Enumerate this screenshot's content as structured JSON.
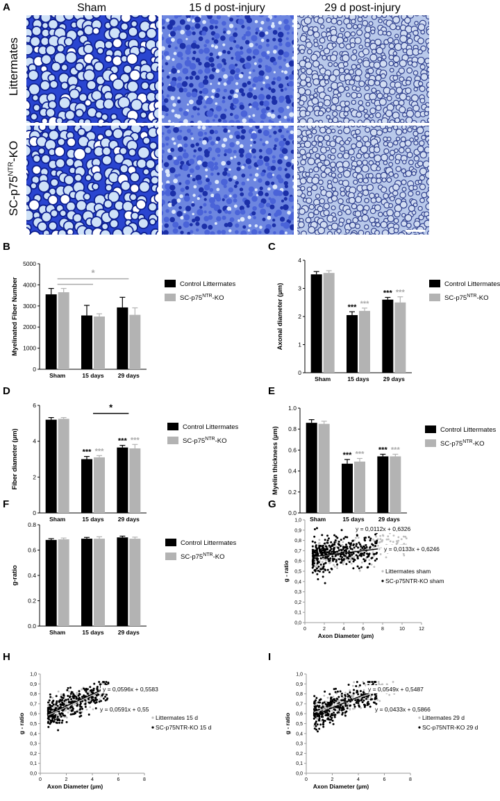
{
  "figure": {
    "panel_letters": [
      "A",
      "B",
      "C",
      "D",
      "E",
      "F",
      "G",
      "H",
      "I"
    ],
    "column_titles": [
      "Sham",
      "15 d post-injury",
      "29 d post-injury"
    ],
    "row_titles": [
      "Littermates",
      "SC-p75NTR-KO"
    ]
  },
  "colors": {
    "control": "#000000",
    "ko": "#b3b3b3",
    "sig_ko": "#aaaaaa",
    "stain_dark": "#1a2fb8",
    "stain_light": "#d8e6f5"
  },
  "chart_data": [
    {
      "panel": "B",
      "type": "bar",
      "ylabel": "Myelinated Fiber Number",
      "categories": [
        "Sham",
        "15 days",
        "29 days"
      ],
      "ylim": [
        0,
        5000
      ],
      "yticks": [
        "0",
        "1000",
        "2000",
        "3000",
        "4000",
        "5000"
      ],
      "series": [
        {
          "name": "Control Littermates",
          "values": [
            3550,
            2550,
            2930
          ],
          "errors": [
            280,
            480,
            480
          ]
        },
        {
          "name": "SC-p75NTR-KO",
          "values": [
            3650,
            2500,
            2580
          ],
          "errors": [
            180,
            130,
            330
          ]
        }
      ],
      "annotations": [
        {
          "text": "*",
          "spans": [
            [
              "Sham",
              "15 days"
            ],
            [
              "Sham",
              "29 days"
            ]
          ],
          "color": "ko"
        }
      ]
    },
    {
      "panel": "C",
      "type": "bar",
      "ylabel": "Axonal diameter (µm)",
      "categories": [
        "Sham",
        "15 days",
        "29 days"
      ],
      "ylim": [
        0,
        4
      ],
      "yticks": [
        "0",
        "1",
        "2",
        "3",
        "4"
      ],
      "series": [
        {
          "name": "Control Littermates",
          "values": [
            3.5,
            2.05,
            2.6
          ],
          "errors": [
            0.1,
            0.12,
            0.08
          ]
        },
        {
          "name": "SC-p75NTR-KO",
          "values": [
            3.55,
            2.2,
            2.5
          ],
          "errors": [
            0.08,
            0.1,
            0.2
          ]
        }
      ],
      "annotations": [
        {
          "text": "***",
          "category": "15 days",
          "series": 0
        },
        {
          "text": "***",
          "category": "15 days",
          "series": 1
        },
        {
          "text": "***",
          "category": "29 days",
          "series": 0
        },
        {
          "text": "***",
          "category": "29 days",
          "series": 1
        }
      ]
    },
    {
      "panel": "D",
      "type": "bar",
      "ylabel": "Fiber diameter (µm)",
      "categories": [
        "Sham",
        "15 days",
        "29 days"
      ],
      "ylim": [
        0,
        6
      ],
      "yticks": [
        "0",
        "2",
        "4",
        "6"
      ],
      "series": [
        {
          "name": "Control Littermates",
          "values": [
            5.2,
            3.0,
            3.65
          ],
          "errors": [
            0.12,
            0.15,
            0.12
          ]
        },
        {
          "name": "SC-p75NTR-KO",
          "values": [
            5.25,
            3.1,
            3.6
          ],
          "errors": [
            0.07,
            0.1,
            0.22
          ]
        }
      ],
      "annotations": [
        {
          "text": "*",
          "spans": [
            [
              "15 days",
              "29 days"
            ]
          ],
          "color": "control"
        },
        {
          "text": "***",
          "category": "15 days",
          "series": 0
        },
        {
          "text": "***",
          "category": "15 days",
          "series": 1
        },
        {
          "text": "***",
          "category": "29 days",
          "series": 0
        },
        {
          "text": "***",
          "category": "29 days",
          "series": 1
        }
      ]
    },
    {
      "panel": "E",
      "type": "bar",
      "ylabel": "Myelin thickness (µm)",
      "categories": [
        "Sham",
        "15 days",
        "29 days"
      ],
      "ylim": [
        0,
        1
      ],
      "yticks": [
        "0.0",
        "0.2",
        "0.4",
        "0.6",
        "0.8",
        "1.0"
      ],
      "series": [
        {
          "name": "Control Littermates",
          "values": [
            0.86,
            0.47,
            0.54
          ],
          "errors": [
            0.03,
            0.04,
            0.02
          ]
        },
        {
          "name": "SC-p75NTR-KO",
          "values": [
            0.85,
            0.49,
            0.54
          ],
          "errors": [
            0.025,
            0.03,
            0.02
          ]
        }
      ],
      "annotations": [
        {
          "text": "***",
          "category": "15 days",
          "series": 0
        },
        {
          "text": "***",
          "category": "15 days",
          "series": 1
        },
        {
          "text": "***",
          "category": "29 days",
          "series": 0
        },
        {
          "text": "***",
          "category": "29 days",
          "series": 1
        }
      ]
    },
    {
      "panel": "F",
      "type": "bar",
      "ylabel": "g-ratio",
      "categories": [
        "Sham",
        "15 days",
        "29 days"
      ],
      "ylim": [
        0,
        0.8
      ],
      "yticks": [
        "0.0",
        "0.2",
        "0.4",
        "0.6",
        "0.8"
      ],
      "series": [
        {
          "name": "Control Littermates",
          "values": [
            0.68,
            0.69,
            0.7
          ],
          "errors": [
            0.01,
            0.01,
            0.01
          ]
        },
        {
          "name": "SC-p75NTR-KO",
          "values": [
            0.685,
            0.69,
            0.69
          ],
          "errors": [
            0.01,
            0.015,
            0.012
          ]
        }
      ]
    },
    {
      "panel": "G",
      "type": "scatter",
      "xlabel": "Axon Diameter (µm)",
      "ylabel": "g - ratio",
      "xlim": [
        0,
        12
      ],
      "ylim": [
        0,
        1
      ],
      "xticks": [
        "0",
        "2",
        "4",
        "6",
        "8",
        "10",
        "12"
      ],
      "yticks": [
        "0,0",
        "0,1",
        "0,2",
        "0,3",
        "0,4",
        "0,5",
        "0,6",
        "0,7",
        "0,8",
        "0,9",
        "1,0"
      ],
      "series": [
        {
          "name": "Littermates sham",
          "slope": 0.0133,
          "intercept": 0.6246,
          "equation": "y = 0,0133x + 0,6246",
          "x_range": [
            1.0,
            10.5
          ],
          "y_spread": 0.07,
          "count": 220
        },
        {
          "name": "SC-p75NTR-KO sham",
          "slope": 0.0112,
          "intercept": 0.6326,
          "equation": "y = 0,0112x + 0,6326",
          "x_range": [
            0.8,
            7.5
          ],
          "y_spread": 0.08,
          "count": 380
        }
      ]
    },
    {
      "panel": "H",
      "type": "scatter",
      "xlabel": "Axon Diameter (µm)",
      "ylabel": "g - ratio",
      "xlim": [
        0,
        8
      ],
      "ylim": [
        0,
        1
      ],
      "xticks": [
        "0",
        "2",
        "4",
        "6",
        "8"
      ],
      "yticks": [
        "0,0",
        "0,1",
        "0,2",
        "0,3",
        "0,4",
        "0,5",
        "0,6",
        "0,7",
        "0,8",
        "0,9",
        "1,0"
      ],
      "series": [
        {
          "name": "Littermates 15 d",
          "slope": 0.0591,
          "intercept": 0.55,
          "equation": "y = 0,0591x + 0,55",
          "x_range": [
            0.6,
            5.0
          ],
          "y_spread": 0.06,
          "count": 200
        },
        {
          "name": "SC-p75NTR-KO 15 d",
          "slope": 0.0596,
          "intercept": 0.5583,
          "equation": "y = 0,0596x + 0,5583",
          "x_range": [
            0.6,
            5.3
          ],
          "y_spread": 0.07,
          "count": 320
        }
      ]
    },
    {
      "panel": "I",
      "type": "scatter",
      "xlabel": "Axon Diameter (µm)",
      "ylabel": "g - ratio",
      "xlim": [
        0,
        8
      ],
      "ylim": [
        0,
        1
      ],
      "xticks": [
        "0",
        "2",
        "4",
        "6",
        "8"
      ],
      "yticks": [
        "0,0",
        "0,1",
        "0,2",
        "0,3",
        "0,4",
        "0,5",
        "0,6",
        "0,7",
        "0,8",
        "0,9",
        "1,0"
      ],
      "series": [
        {
          "name": "Littermates 29 d",
          "slope": 0.0433,
          "intercept": 0.5866,
          "equation": "y = 0,0433x + 0,5866",
          "x_range": [
            0.6,
            6.8
          ],
          "y_spread": 0.06,
          "count": 200
        },
        {
          "name": "SC-p75NTR-KO 29 d",
          "slope": 0.0549,
          "intercept": 0.5487,
          "equation": "y = 0,0549x + 0,5487",
          "x_range": [
            0.6,
            5.4
          ],
          "y_spread": 0.07,
          "count": 320
        }
      ]
    }
  ]
}
